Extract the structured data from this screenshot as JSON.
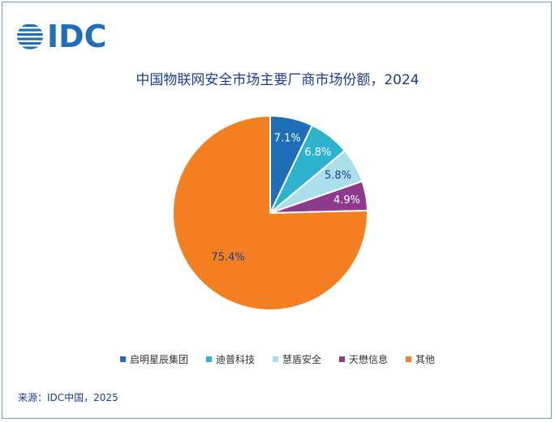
{
  "logo": {
    "text": "IDC"
  },
  "chart_data": {
    "type": "pie",
    "title": "中国物联网安全市场主要厂商市场份额，2024",
    "start_angle_deg": 0,
    "direction": "clockwise",
    "slices": [
      {
        "name": "启明星辰集团",
        "value": 7.1,
        "label": "7.1%",
        "color": "#1f6fb8",
        "label_color": "#ffffff"
      },
      {
        "name": "迪普科技",
        "value": 6.8,
        "label": "6.8%",
        "color": "#2eb3cf",
        "label_color": "#ffffff"
      },
      {
        "name": "慧盾安全",
        "value": 5.8,
        "label": "5.8%",
        "color": "#a9dfe9",
        "label_color": "#1a3d8f"
      },
      {
        "name": "天懋信息",
        "value": 4.9,
        "label": "4.9%",
        "color": "#8e3b8f",
        "label_color": "#ffffff"
      },
      {
        "name": "其他",
        "value": 75.4,
        "label": "75.4%",
        "color": "#f47f20",
        "label_color": "#1a3d8f"
      }
    ],
    "legend_position": "bottom"
  },
  "source": "来源：IDC中国，2025"
}
